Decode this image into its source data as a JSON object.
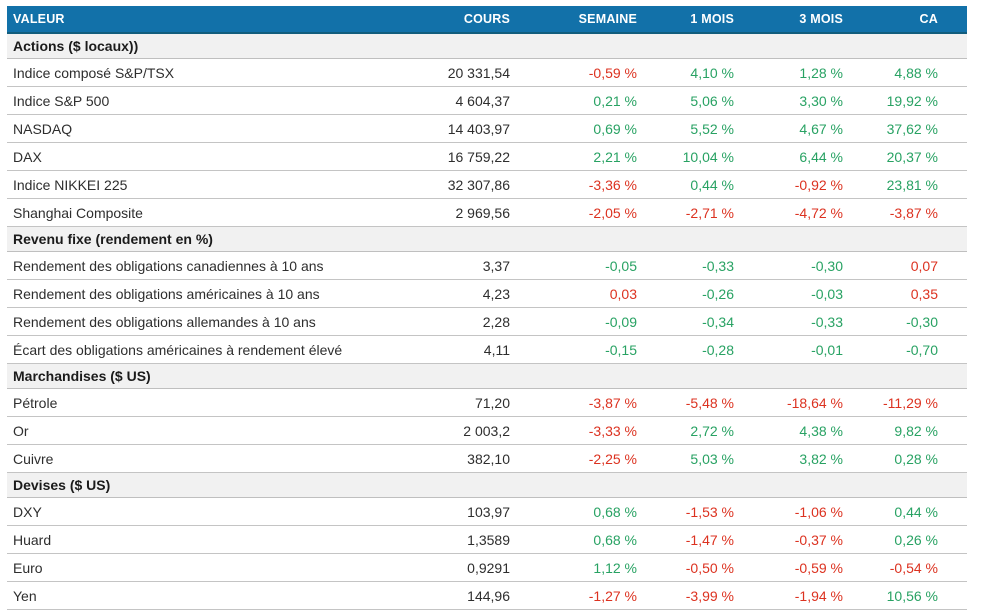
{
  "palette": {
    "header_bg": "#1271a9",
    "header_edge": "#125d7d",
    "header_text": "#ffffff",
    "section_bg": "#f1f1f1",
    "row_border": "#c4c4c4",
    "positive_green": "#28a263",
    "negative_red": "#dc3220",
    "text": "#2e2e2e"
  },
  "chart_data": {
    "type": "table",
    "columns": [
      {
        "id": "valeur",
        "label": "VALEUR"
      },
      {
        "id": "cours",
        "label": "COURS"
      },
      {
        "id": "semaine",
        "label": "SEMAINE"
      },
      {
        "id": "1mois",
        "label": "1 MOIS"
      },
      {
        "id": "3mois",
        "label": "3 MOIS"
      },
      {
        "id": "ca",
        "label": "CA"
      }
    ],
    "sections": [
      {
        "id": "actions",
        "title": "Actions ($ locaux))",
        "rows": [
          {
            "label": "Indice composé S&P/TSX",
            "cours": "20 331,54",
            "cells": [
              {
                "value": "-0,59 %",
                "color": "negative"
              },
              {
                "value": "4,10 %",
                "color": "positive"
              },
              {
                "value": "1,28 %",
                "color": "positive"
              },
              {
                "value": "4,88 %",
                "color": "positive"
              }
            ]
          },
          {
            "label": "Indice S&P 500",
            "cours": "4 604,37",
            "cells": [
              {
                "value": "0,21 %",
                "color": "positive"
              },
              {
                "value": "5,06 %",
                "color": "positive"
              },
              {
                "value": "3,30 %",
                "color": "positive"
              },
              {
                "value": "19,92 %",
                "color": "positive"
              }
            ]
          },
          {
            "label": "NASDAQ",
            "cours": "14 403,97",
            "cells": [
              {
                "value": "0,69 %",
                "color": "positive"
              },
              {
                "value": "5,52 %",
                "color": "positive"
              },
              {
                "value": "4,67 %",
                "color": "positive"
              },
              {
                "value": "37,62 %",
                "color": "positive"
              }
            ]
          },
          {
            "label": "DAX",
            "cours": "16 759,22",
            "cells": [
              {
                "value": "2,21 %",
                "color": "positive"
              },
              {
                "value": "10,04 %",
                "color": "positive"
              },
              {
                "value": "6,44 %",
                "color": "positive"
              },
              {
                "value": "20,37 %",
                "color": "positive"
              }
            ]
          },
          {
            "label": "Indice NIKKEI 225",
            "cours": "32 307,86",
            "cells": [
              {
                "value": "-3,36 %",
                "color": "negative"
              },
              {
                "value": "0,44 %",
                "color": "positive"
              },
              {
                "value": "-0,92 %",
                "color": "negative"
              },
              {
                "value": "23,81 %",
                "color": "positive"
              }
            ]
          },
          {
            "label": "Shanghai Composite",
            "cours": "2 969,56",
            "cells": [
              {
                "value": "-2,05 %",
                "color": "negative"
              },
              {
                "value": "-2,71 %",
                "color": "negative"
              },
              {
                "value": "-4,72 %",
                "color": "negative"
              },
              {
                "value": "-3,87 %",
                "color": "negative"
              }
            ]
          }
        ]
      },
      {
        "id": "revenu-fixe",
        "title": "Revenu fixe (rendement en %)",
        "rows": [
          {
            "label": "Rendement des obligations canadiennes à 10 ans",
            "cours": "3,37",
            "cells": [
              {
                "value": "-0,05",
                "color": "positive"
              },
              {
                "value": "-0,33",
                "color": "positive"
              },
              {
                "value": "-0,30",
                "color": "positive"
              },
              {
                "value": "0,07",
                "color": "negative"
              }
            ]
          },
          {
            "label": "Rendement des obligations américaines à 10 ans",
            "cours": "4,23",
            "cells": [
              {
                "value": "0,03",
                "color": "negative"
              },
              {
                "value": "-0,26",
                "color": "positive"
              },
              {
                "value": "-0,03",
                "color": "positive"
              },
              {
                "value": "0,35",
                "color": "negative"
              }
            ]
          },
          {
            "label": "Rendement des obligations allemandes à 10 ans",
            "cours": "2,28",
            "cells": [
              {
                "value": "-0,09",
                "color": "positive"
              },
              {
                "value": "-0,34",
                "color": "positive"
              },
              {
                "value": "-0,33",
                "color": "positive"
              },
              {
                "value": "-0,30",
                "color": "positive"
              }
            ]
          },
          {
            "label": "Écart des obligations américaines à rendement élevé",
            "cours": "4,11",
            "cells": [
              {
                "value": "-0,15",
                "color": "positive"
              },
              {
                "value": "-0,28",
                "color": "positive"
              },
              {
                "value": "-0,01",
                "color": "positive"
              },
              {
                "value": "-0,70",
                "color": "positive"
              }
            ]
          }
        ]
      },
      {
        "id": "marchandises",
        "title": "Marchandises ($ US)",
        "rows": [
          {
            "label": "Pétrole",
            "cours": "71,20",
            "cells": [
              {
                "value": "-3,87 %",
                "color": "negative"
              },
              {
                "value": "-5,48 %",
                "color": "negative"
              },
              {
                "value": "-18,64 %",
                "color": "negative"
              },
              {
                "value": "-11,29 %",
                "color": "negative"
              }
            ]
          },
          {
            "label": "Or",
            "cours": "2 003,2",
            "cells": [
              {
                "value": "-3,33 %",
                "color": "negative"
              },
              {
                "value": "2,72 %",
                "color": "positive"
              },
              {
                "value": "4,38 %",
                "color": "positive"
              },
              {
                "value": "9,82 %",
                "color": "positive"
              }
            ]
          },
          {
            "label": "Cuivre",
            "cours": "382,10",
            "cells": [
              {
                "value": "-2,25 %",
                "color": "negative"
              },
              {
                "value": "5,03 %",
                "color": "positive"
              },
              {
                "value": "3,82 %",
                "color": "positive"
              },
              {
                "value": "0,28 %",
                "color": "positive"
              }
            ]
          }
        ]
      },
      {
        "id": "devises",
        "title": "Devises ($ US)",
        "rows": [
          {
            "label": "DXY",
            "cours": "103,97",
            "cells": [
              {
                "value": "0,68 %",
                "color": "positive"
              },
              {
                "value": "-1,53 %",
                "color": "negative"
              },
              {
                "value": "-1,06 %",
                "color": "negative"
              },
              {
                "value": "0,44 %",
                "color": "positive"
              }
            ]
          },
          {
            "label": "Huard",
            "cours": "1,3589",
            "cells": [
              {
                "value": "0,68 %",
                "color": "positive"
              },
              {
                "value": "-1,47 %",
                "color": "negative"
              },
              {
                "value": "-0,37 %",
                "color": "negative"
              },
              {
                "value": "0,26 %",
                "color": "positive"
              }
            ]
          },
          {
            "label": "Euro",
            "cours": "0,9291",
            "cells": [
              {
                "value": "1,12 %",
                "color": "positive"
              },
              {
                "value": "-0,50 %",
                "color": "negative"
              },
              {
                "value": "-0,59 %",
                "color": "negative"
              },
              {
                "value": "-0,54 %",
                "color": "negative"
              }
            ]
          },
          {
            "label": "Yen",
            "cours": "144,96",
            "cells": [
              {
                "value": "-1,27 %",
                "color": "negative"
              },
              {
                "value": "-3,99 %",
                "color": "negative"
              },
              {
                "value": "-1,94 %",
                "color": "negative"
              },
              {
                "value": "10,56 %",
                "color": "positive"
              }
            ]
          }
        ]
      }
    ]
  }
}
